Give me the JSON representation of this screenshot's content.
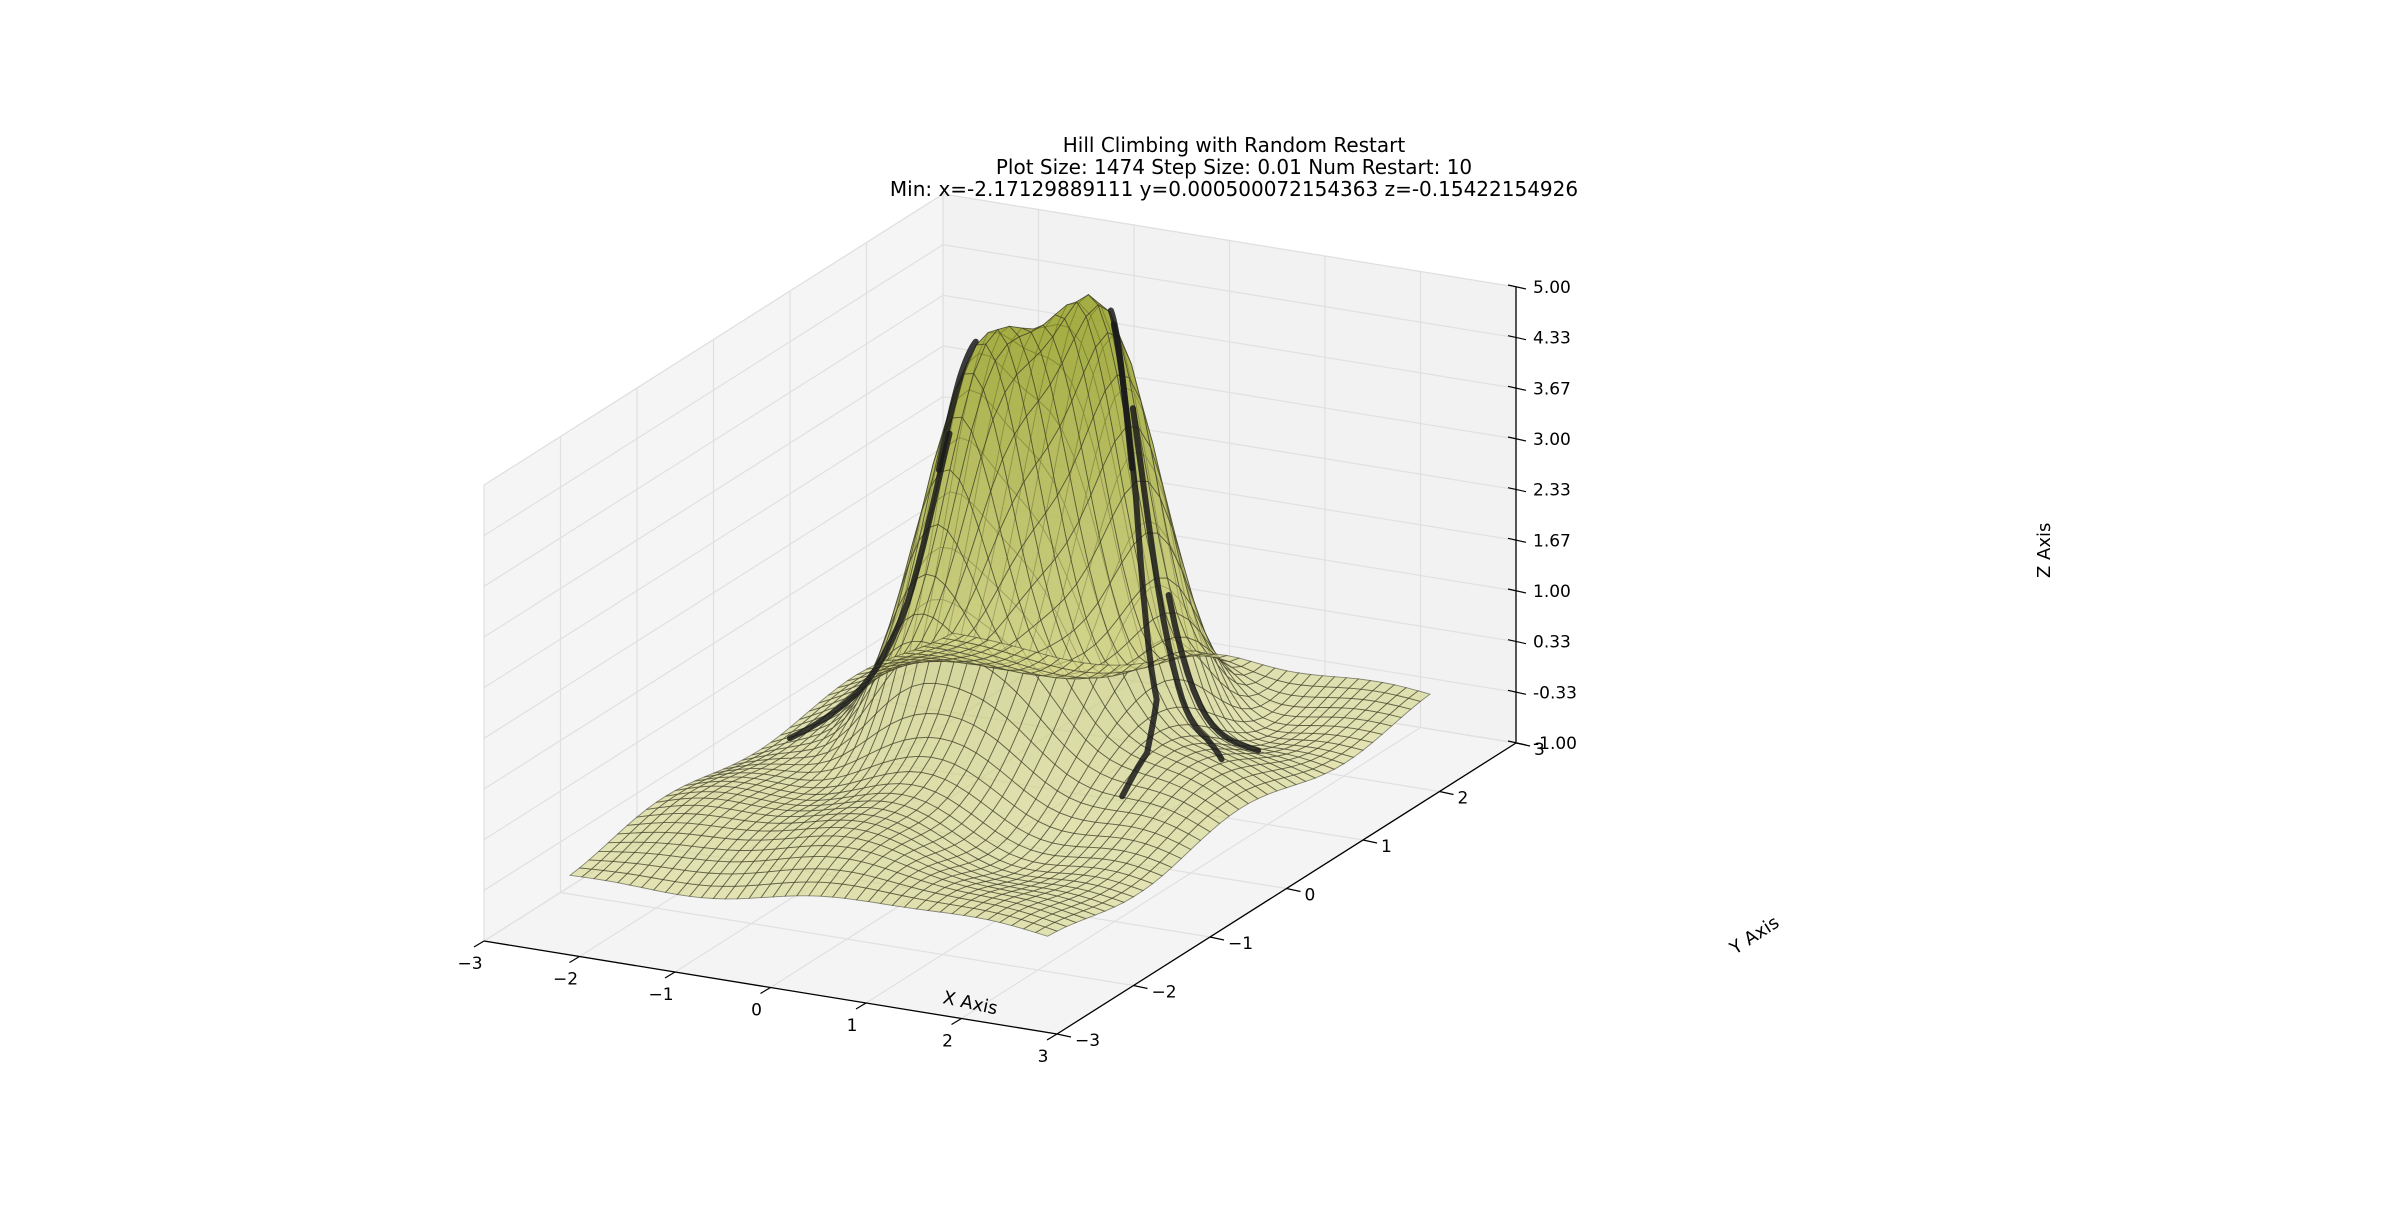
{
  "chart_data": {
    "type": "surface3d",
    "title_lines": [
      "Hill Climbing with Random Restart",
      "Plot Size: 1474   Step Size: 0.01   Num Restart: 10",
      "Min: x=-2.17129889111   y=0.000500072154363   z=-0.15422154926"
    ],
    "xlabel": "X Axis",
    "ylabel": "Y Axis",
    "zlabel": "Z Axis",
    "xlim": [
      -3,
      3
    ],
    "ylim": [
      -3,
      3
    ],
    "zlim": [
      -1,
      5
    ],
    "x_ticks": [
      "−3",
      "−2",
      "−1",
      "0",
      "1",
      "2",
      "3"
    ],
    "y_ticks": [
      "−3",
      "−2",
      "−1",
      "0",
      "1",
      "2",
      "3"
    ],
    "z_ticks": [
      "-1.00",
      "-0.33",
      "0.33",
      "1.00",
      "1.67",
      "2.33",
      "3.00",
      "3.67",
      "4.33",
      "5.00"
    ],
    "grid": true,
    "surface_color": "#d6d65a",
    "wire_color": "#333322",
    "path_color": "#1a1a1a",
    "pane_color": "#f2f2f2"
  }
}
